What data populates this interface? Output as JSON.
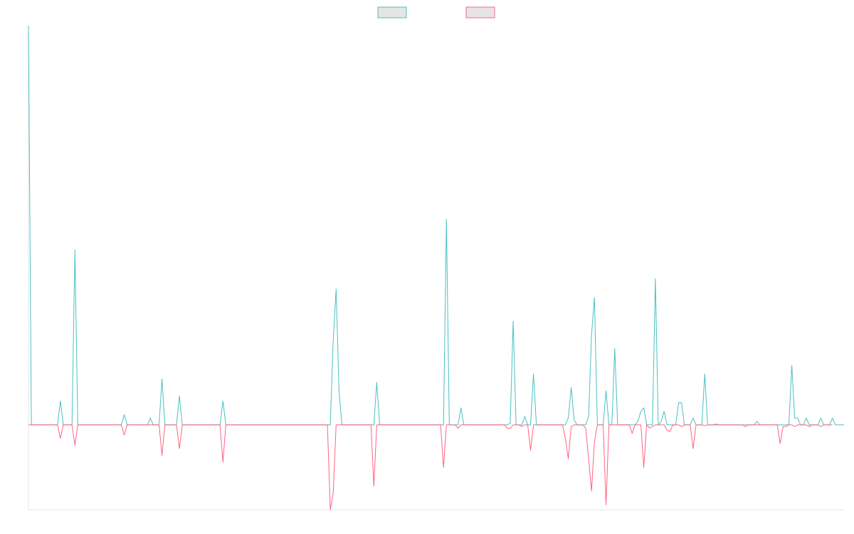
{
  "chart_data": {
    "type": "line",
    "title": "",
    "xlabel": "",
    "ylabel": "",
    "grid": false,
    "legend_position": "top-center",
    "ylim": [
      -0.05,
      0.235
    ],
    "series": [
      {
        "color": "#4bc0c0",
        "fill": "#e5e5e5",
        "values": [
          0.235,
          0,
          0,
          0,
          0,
          0,
          0,
          0,
          0,
          0,
          0,
          0.014,
          0,
          0,
          0,
          0,
          0.103,
          0,
          0,
          0,
          0,
          0,
          0,
          0,
          0,
          0,
          0,
          0,
          0,
          0,
          0,
          0,
          0,
          0.006,
          0,
          0,
          0,
          0,
          0,
          0,
          0,
          0,
          0.004,
          0,
          0,
          0,
          0.027,
          0,
          0,
          0,
          0,
          0,
          0.017,
          0,
          0,
          0,
          0,
          0,
          0,
          0,
          0,
          0,
          0,
          0,
          0,
          0,
          0,
          0.014,
          0,
          0,
          0,
          0,
          0,
          0,
          0,
          0,
          0,
          0,
          0,
          0,
          0,
          0,
          0,
          0,
          0,
          0,
          0,
          0,
          0,
          0,
          0,
          0,
          0,
          0,
          0,
          0,
          0,
          0,
          0,
          0,
          0,
          0,
          0,
          0,
          0,
          0.05,
          0.08,
          0.02,
          0,
          0,
          0,
          0,
          0,
          0,
          0,
          0,
          0,
          0,
          0,
          0,
          0.025,
          0,
          0,
          0,
          0,
          0,
          0,
          0,
          0,
          0,
          0,
          0,
          0,
          0,
          0,
          0,
          0,
          0,
          0,
          0,
          0,
          0,
          0,
          0,
          0.121,
          0,
          0,
          0,
          0,
          0.01,
          0,
          0,
          0,
          0,
          0,
          0,
          0,
          0,
          0,
          0,
          0,
          0,
          0,
          0,
          0,
          0,
          0.001,
          0.061,
          0,
          0,
          0,
          0.005,
          0,
          0,
          0.03,
          0,
          0,
          0,
          0,
          0,
          0,
          0,
          0,
          0,
          0,
          0,
          0.004,
          0.022,
          0.003,
          0,
          0,
          0,
          0,
          0.005,
          0.053,
          0.075,
          0,
          0,
          0,
          0.02,
          0,
          0,
          0.045,
          0,
          0,
          0,
          0,
          0,
          0,
          0,
          0.002,
          0.008,
          0.01,
          0,
          0,
          0,
          0.086,
          0,
          0.002,
          0.008,
          0,
          0,
          0,
          0,
          0.013,
          0.013,
          0,
          0,
          0,
          0.004,
          0,
          0,
          0,
          0.03,
          0,
          0,
          0,
          0.0005,
          0,
          0,
          0,
          0,
          0,
          0,
          0,
          0,
          0,
          0,
          0,
          0,
          0,
          0.002,
          0,
          0,
          0,
          0,
          0,
          0,
          0,
          0,
          0,
          0,
          0,
          0.035,
          0.004,
          0.004,
          0,
          0,
          0.004,
          0,
          0,
          0,
          0,
          0.004,
          0,
          0,
          0,
          0.004,
          0,
          0,
          0,
          0
        ]
      },
      {
        "color": "#ff6384",
        "fill": "#e5e5e5",
        "values": [
          0,
          0,
          0,
          0,
          0,
          0,
          0,
          0,
          0,
          0,
          0,
          -0.008,
          0,
          0,
          0,
          0,
          -0.012,
          0,
          0,
          0,
          0,
          0,
          0,
          0,
          0,
          0,
          0,
          0,
          0,
          0,
          0,
          0,
          0,
          -0.006,
          0,
          0,
          0,
          0,
          0,
          0,
          0,
          0,
          0,
          0,
          0,
          0,
          -0.018,
          0,
          0,
          0,
          0,
          0,
          -0.014,
          0,
          0,
          0,
          0,
          0,
          0,
          0,
          0,
          0,
          0,
          0,
          0,
          0,
          0,
          -0.022,
          0,
          0,
          0,
          0,
          0,
          0,
          0,
          0,
          0,
          0,
          0,
          0,
          0,
          0,
          0,
          0,
          0,
          0,
          0,
          0,
          0,
          0,
          0,
          0,
          0,
          0,
          0,
          0,
          0,
          0,
          0,
          0,
          0,
          0,
          0,
          0,
          -0.05,
          -0.04,
          0,
          0,
          0,
          0,
          0,
          0,
          0,
          0,
          0,
          0,
          0,
          0,
          0,
          -0.036,
          0,
          0,
          0,
          0,
          0,
          0,
          0,
          0,
          0,
          0,
          0,
          0,
          0,
          0,
          0,
          0,
          0,
          0,
          0,
          0,
          0,
          0,
          0,
          -0.025,
          0,
          0,
          0,
          0,
          -0.002,
          0,
          0,
          0,
          0,
          0,
          0,
          0,
          0,
          0,
          0,
          0,
          0,
          0,
          0,
          0,
          0,
          -0.002,
          -0.002,
          0,
          0,
          0,
          -0.001,
          0,
          0,
          -0.015,
          0,
          0,
          0,
          0,
          0,
          0,
          0,
          0,
          0,
          0,
          0,
          -0.008,
          -0.02,
          -0.001,
          0,
          0,
          0,
          0,
          -0.002,
          -0.02,
          -0.039,
          -0.01,
          0,
          0,
          0,
          -0.047,
          0,
          0,
          0,
          0,
          0,
          0,
          0,
          0,
          -0.005,
          0,
          0,
          0,
          -0.025,
          0,
          -0.002,
          -0.001,
          0,
          0,
          0,
          0,
          -0.003,
          -0.004,
          0,
          0,
          0,
          -0.001,
          0,
          0,
          0,
          -0.014,
          0,
          0,
          0,
          -0.0005,
          0,
          0,
          0,
          0,
          0,
          0,
          0,
          0,
          0,
          0,
          0,
          0,
          0,
          -0.001,
          0,
          0,
          0,
          0,
          0,
          0,
          0,
          0,
          0,
          0,
          0,
          -0.011,
          -0.001,
          -0.001,
          0,
          0,
          -0.001,
          0,
          0,
          0,
          0,
          -0.001,
          0,
          0,
          0,
          -0.001,
          0,
          0,
          0,
          0
        ]
      }
    ]
  }
}
